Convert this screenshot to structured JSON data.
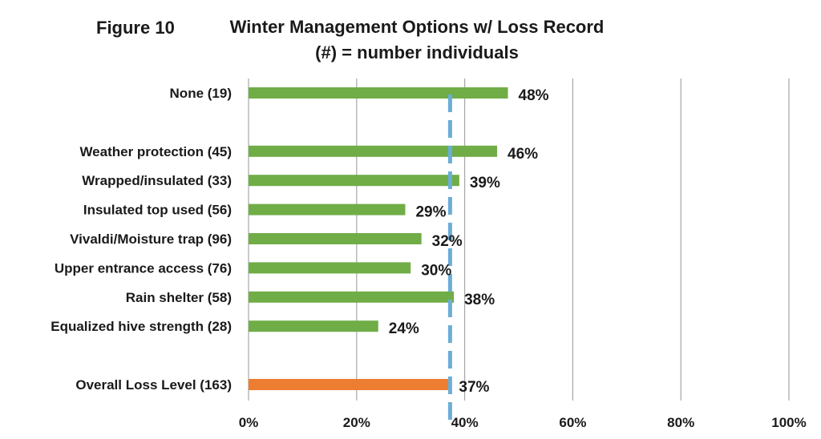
{
  "figure_label": "Figure 10",
  "chart_data": {
    "type": "bar",
    "orientation": "horizontal",
    "title": "Winter Management Options w/ Loss Record",
    "subtitle": "(#) = number individuals",
    "categories": [
      "None (19)",
      "",
      "Weather protection (45)",
      "Wrapped/insulated (33)",
      "Insulated top used (56)",
      "Vivaldi/Moisture trap (96)",
      "Upper entrance access (76)",
      "Rain shelter (58)",
      "Equalized hive strength (28)",
      "",
      "Overall Loss Level (163)"
    ],
    "values": [
      48,
      null,
      46,
      39,
      29,
      32,
      30,
      38,
      24,
      null,
      37
    ],
    "data_labels": [
      "48%",
      "",
      "46%",
      "39%",
      "29%",
      "32%",
      "30%",
      "38%",
      "24%",
      "",
      "37%"
    ],
    "highlight": [
      false,
      false,
      false,
      false,
      false,
      false,
      false,
      false,
      false,
      false,
      true
    ],
    "xlim": [
      0,
      100
    ],
    "xticks": [
      "0%",
      "20%",
      "40%",
      "60%",
      "80%",
      "100%"
    ],
    "reference_line": {
      "value": 37,
      "style": "dashed"
    },
    "grid": "vertical",
    "xlabel": "",
    "ylabel": "",
    "colors": {
      "bar": "#70ad47",
      "highlight_bar": "#ed7d31",
      "reference_line": "#6baed6",
      "grid": "#a6a6a6"
    }
  }
}
